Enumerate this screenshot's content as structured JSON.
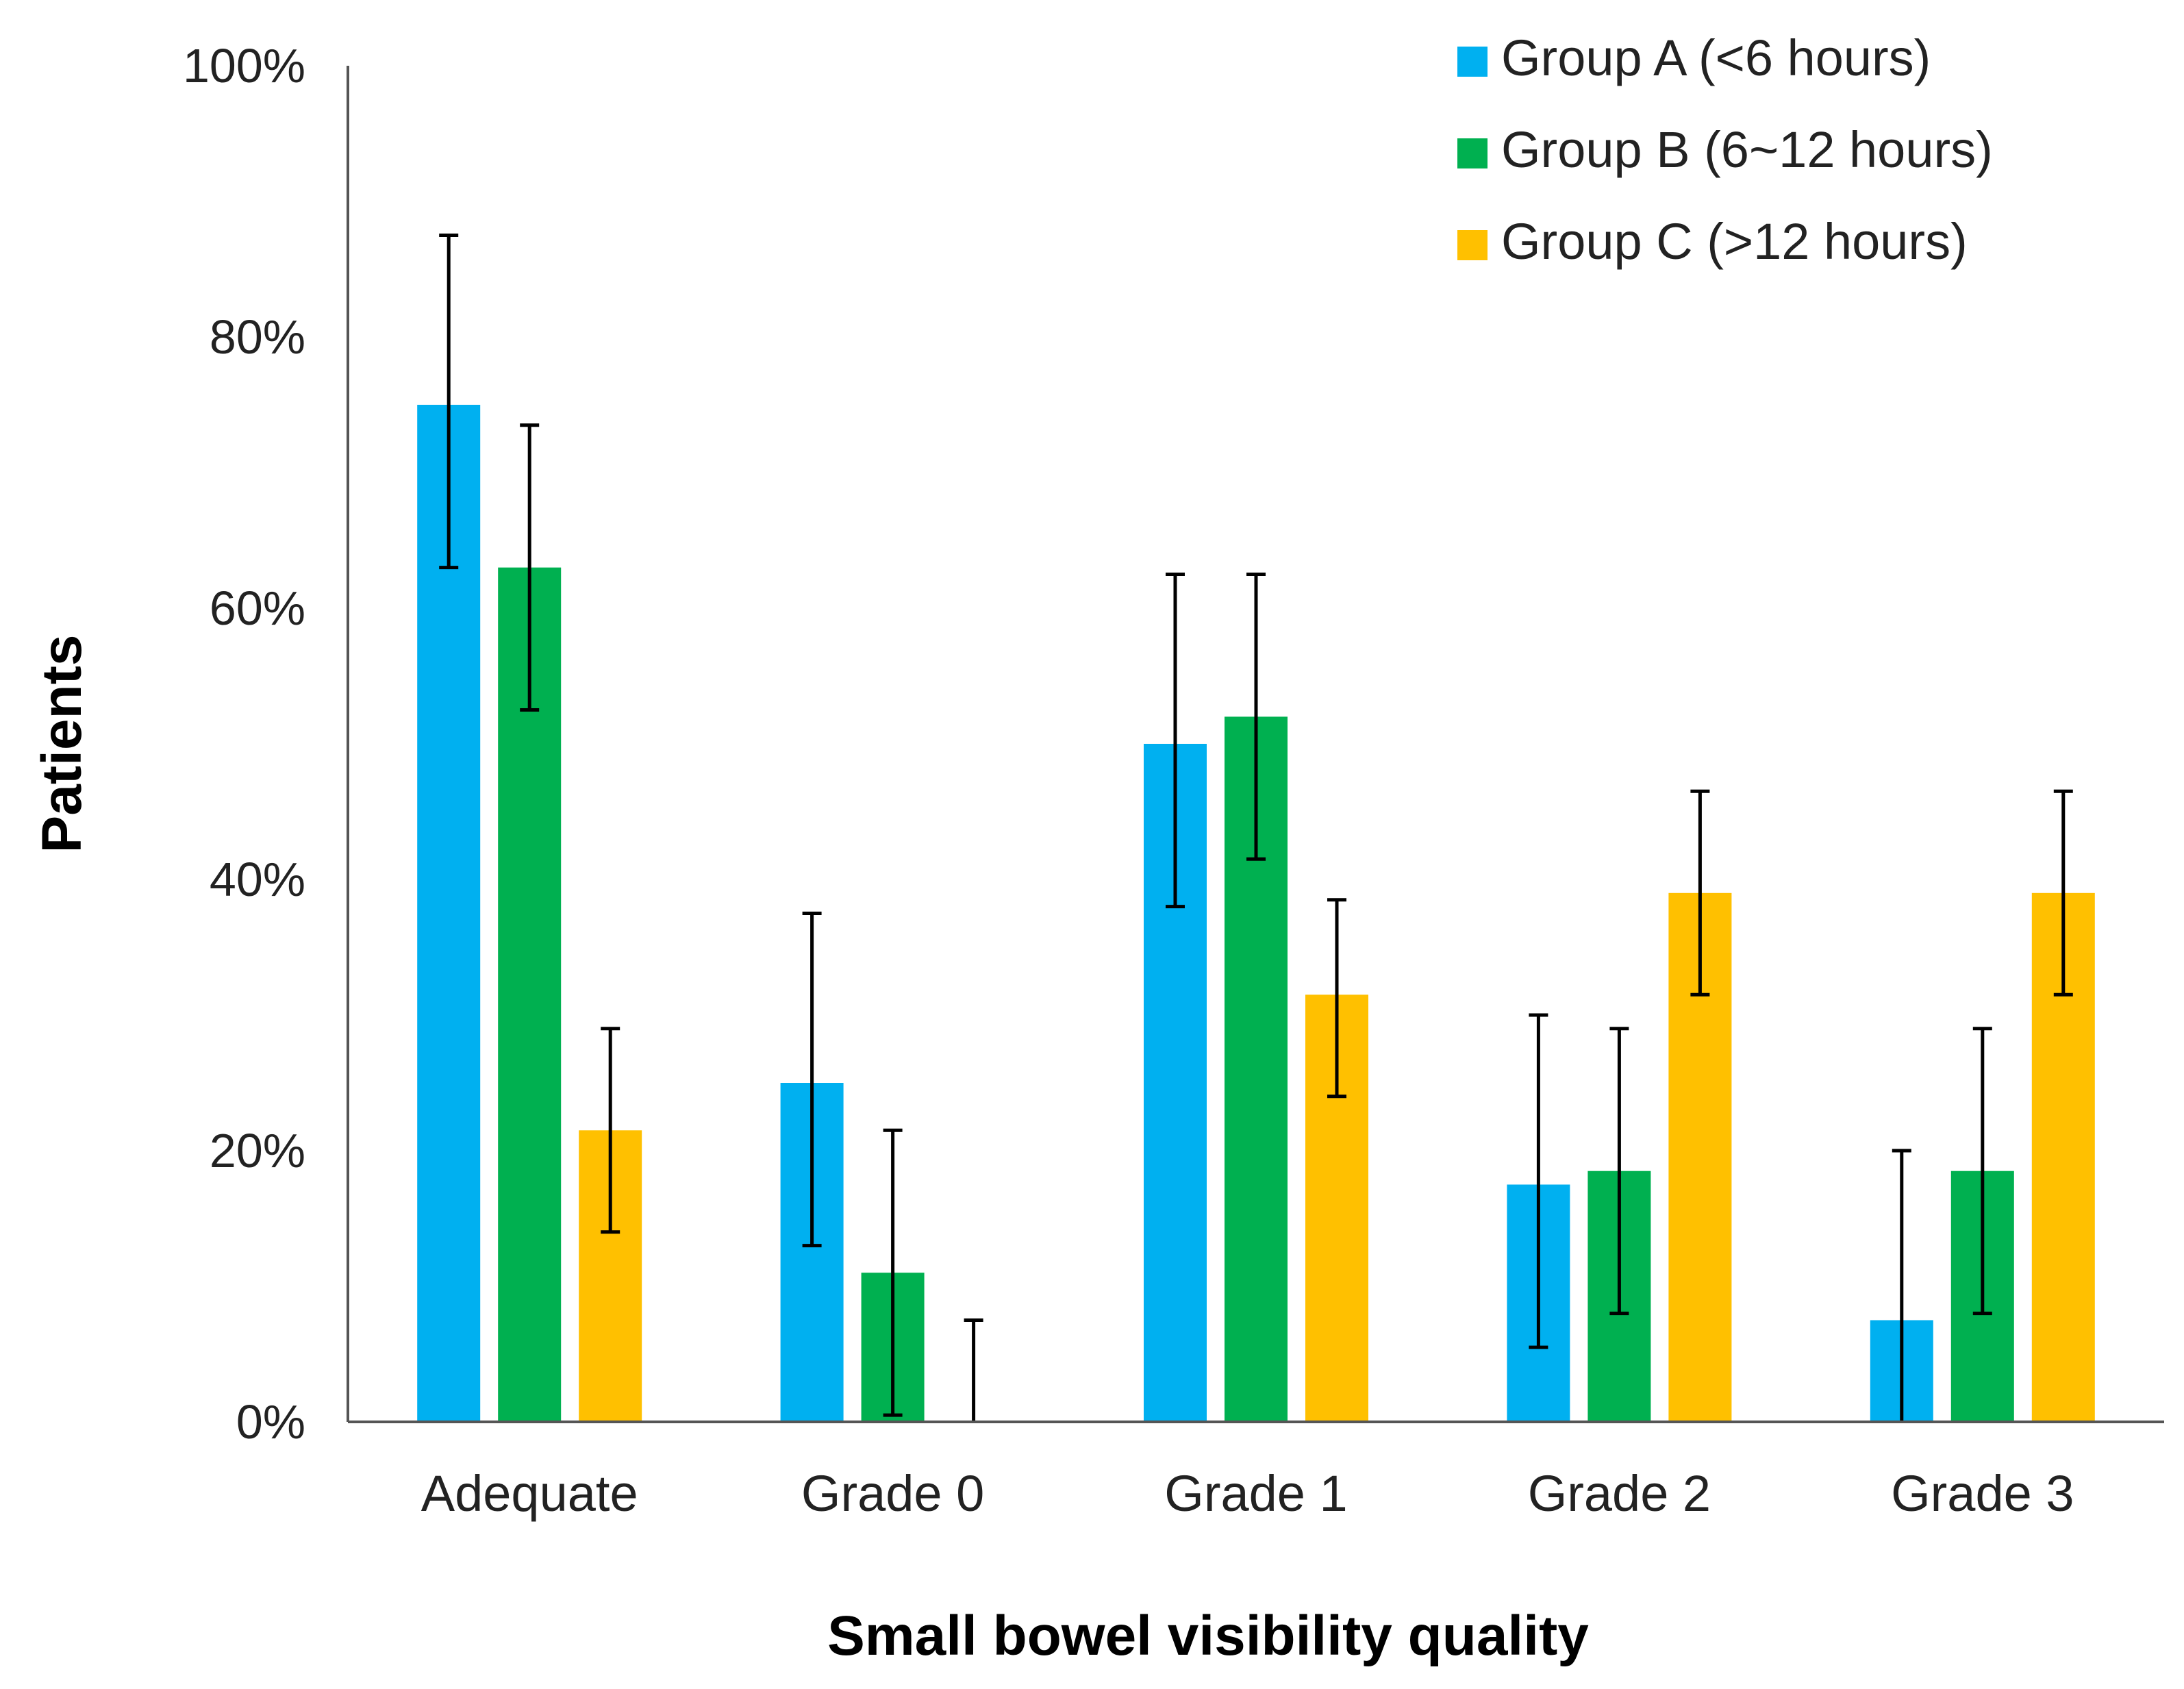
{
  "chart_data": {
    "type": "bar",
    "title": "",
    "xlabel": "Small bowel visibility quality",
    "ylabel": "Patients",
    "categories": [
      "Adequate",
      "Grade 0",
      "Grade 1",
      "Grade 2",
      "Grade 3"
    ],
    "ylim": [
      0,
      100
    ],
    "yticks": [
      0,
      20,
      40,
      60,
      80,
      100
    ],
    "ytick_labels": [
      "0%",
      "20%",
      "40%",
      "60%",
      "80%",
      "100%"
    ],
    "legend_position": "top-right",
    "grid": false,
    "series": [
      {
        "name": "Group A (<6 hours)",
        "color": "#00B0F0",
        "values": [
          75,
          25,
          50,
          17.5,
          7.5
        ],
        "error_low": [
          63,
          13,
          38,
          5.5,
          0
        ],
        "error_high": [
          87.5,
          37.5,
          62.5,
          30,
          20
        ]
      },
      {
        "name": "Group B (6~12 hours)",
        "color": "#00B050",
        "values": [
          63,
          11,
          52,
          18.5,
          18.5
        ],
        "error_low": [
          52.5,
          0.5,
          41.5,
          8,
          8
        ],
        "error_high": [
          73.5,
          21.5,
          62.5,
          29,
          29
        ]
      },
      {
        "name": "Group C (>12 hours)",
        "color": "#FFC000",
        "values": [
          21.5,
          0,
          31.5,
          39,
          39
        ],
        "error_low": [
          14,
          0,
          24,
          31.5,
          31.5
        ],
        "error_high": [
          29,
          7.5,
          38.5,
          46.5,
          46.5
        ]
      }
    ]
  }
}
